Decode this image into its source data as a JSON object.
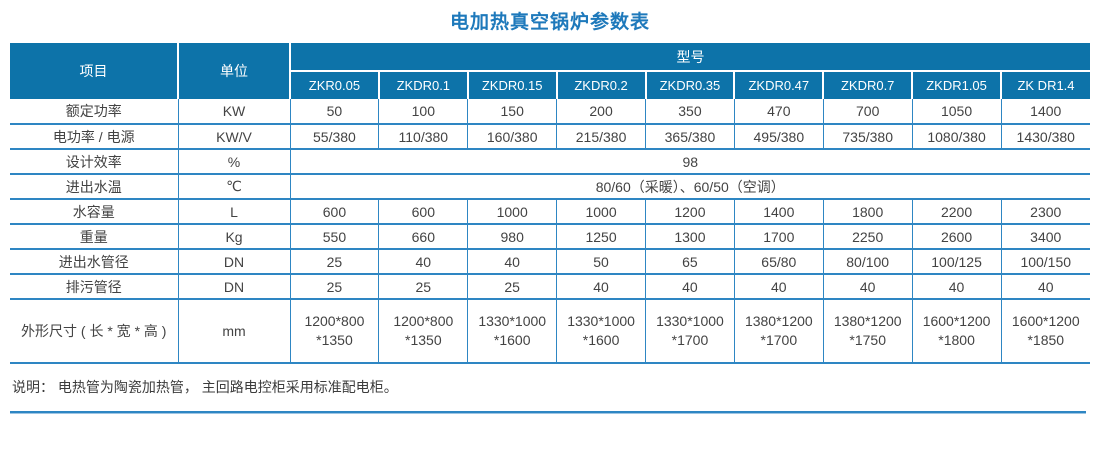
{
  "title": "电加热真空锅炉参数表",
  "colors": {
    "header_background": "#0d73a9",
    "table_border": "#2e86c3",
    "title_text": "#1e79bb",
    "body_text": "#434343",
    "header_text": "#ffffff"
  },
  "table": {
    "header": {
      "item_label": "项目",
      "unit_label": "单位",
      "model_group_label": "型号",
      "models": [
        "ZKR0.05",
        "ZKDR0.1",
        "ZKDR0.15",
        "ZKDR0.2",
        "ZKDR0.35",
        "ZKDR0.47",
        "ZKDR0.7",
        "ZKDR1.05",
        "ZK DR1.4"
      ]
    },
    "rows": [
      {
        "label": "额定功率",
        "unit": "KW",
        "values": [
          "50",
          "100",
          "150",
          "200",
          "350",
          "470",
          "700",
          "1050",
          "1400"
        ]
      },
      {
        "label": "电功率 / 电源",
        "unit": "KW/V",
        "values": [
          "55/380",
          "110/380",
          "160/380",
          "215/380",
          "365/380",
          "495/380",
          "735/380",
          "1080/380",
          "1430/380"
        ]
      },
      {
        "label": "设计效率",
        "unit": "%",
        "merged_value": "98"
      },
      {
        "label": "进出水温",
        "unit": "℃",
        "merged_value": "80/60（采暖）、60/50（空调）"
      },
      {
        "label": "水容量",
        "unit": "L",
        "values": [
          "600",
          "600",
          "1000",
          "1000",
          "1200",
          "1400",
          "1800",
          "2200",
          "2300"
        ]
      },
      {
        "label": "重量",
        "unit": "Kg",
        "values": [
          "550",
          "660",
          "980",
          "1250",
          "1300",
          "1700",
          "2250",
          "2600",
          "3400"
        ]
      },
      {
        "label": "进出水管径",
        "unit": "DN",
        "values": [
          "25",
          "40",
          "40",
          "50",
          "65",
          "65/80",
          "80/100",
          "100/125",
          "100/150"
        ]
      },
      {
        "label": "排污管径",
        "unit": "DN",
        "values": [
          "25",
          "25",
          "25",
          "40",
          "40",
          "40",
          "40",
          "40",
          "40"
        ]
      },
      {
        "label": "外形尺寸 ( 长 * 宽 * 高 )",
        "unit": "mm",
        "tall": true,
        "values": [
          "1200*800\n*1350",
          "1200*800\n*1350",
          "1330*1000\n*1600",
          "1330*1000\n*1600",
          "1330*1000\n*1700",
          "1380*1200\n*1700",
          "1380*1200\n*1750",
          "1600*1200\n*1800",
          "1600*1200\n*1850"
        ]
      }
    ]
  },
  "note": "说明： 电热管为陶瓷加热管， 主回路电控柜采用标准配电柜。"
}
